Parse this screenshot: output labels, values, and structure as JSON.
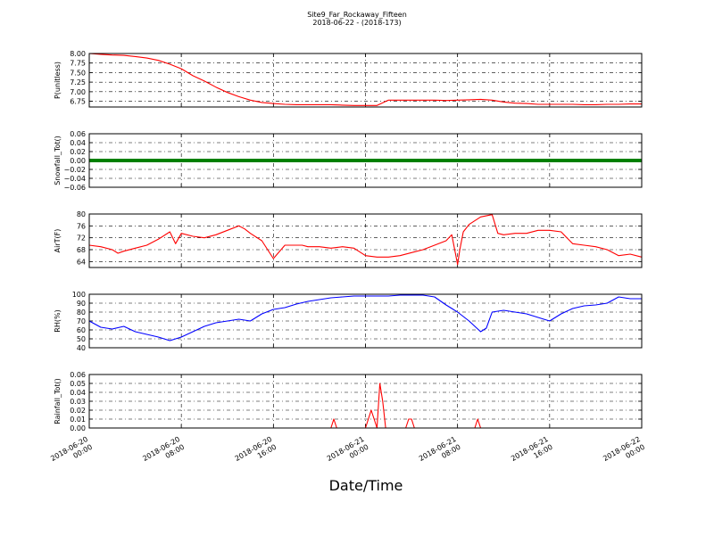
{
  "chart_data": {
    "title": "Site9_Far_Rockaway_Fifteen",
    "subtitle": "2018-06-22 - (2018-173)",
    "xlabel": "Date/Time",
    "x_ticks": [
      [
        "2018-06-20",
        "00:00"
      ],
      [
        "2018-06-20",
        "08:00"
      ],
      [
        "2018-06-20",
        "16:00"
      ],
      [
        "2018-06-21",
        "00:00"
      ],
      [
        "2018-06-21",
        "08:00"
      ],
      [
        "2018-06-21",
        "16:00"
      ],
      [
        "2018-06-22",
        "00:00"
      ]
    ],
    "x_range_hours": [
      0,
      48
    ],
    "grid": true,
    "panels": [
      {
        "type": "line",
        "ylabel": "P(unitless)",
        "color": "#ff0000",
        "ylim": [
          6.6,
          8.0
        ],
        "yticks": [
          "8.00",
          "7.75",
          "7.50",
          "7.25",
          "7.00",
          "6.75"
        ],
        "ytick_values": [
          8.0,
          7.75,
          7.5,
          7.25,
          7.0,
          6.75
        ],
        "x": [
          0,
          1,
          2,
          3,
          4,
          5,
          6,
          7,
          8,
          9,
          10,
          11,
          12,
          13,
          14,
          15,
          16,
          17,
          18,
          19,
          20,
          21,
          22,
          23,
          24,
          25,
          26,
          27,
          28,
          29,
          30,
          31,
          32,
          33,
          34,
          35,
          36,
          37,
          38,
          39,
          40,
          41,
          42,
          43,
          44,
          45,
          46,
          47,
          48
        ],
        "values": [
          8.0,
          7.98,
          7.96,
          7.95,
          7.92,
          7.88,
          7.82,
          7.72,
          7.6,
          7.42,
          7.28,
          7.12,
          6.98,
          6.87,
          6.78,
          6.72,
          6.69,
          6.67,
          6.66,
          6.66,
          6.66,
          6.66,
          6.65,
          6.64,
          6.64,
          6.64,
          6.78,
          6.78,
          6.78,
          6.78,
          6.78,
          6.77,
          6.78,
          6.79,
          6.8,
          6.78,
          6.73,
          6.7,
          6.69,
          6.67,
          6.67,
          6.67,
          6.67,
          6.66,
          6.66,
          6.67,
          6.67,
          6.68,
          6.68
        ]
      },
      {
        "type": "line",
        "ylabel": "Snowfall_Tot()",
        "color": "#008000",
        "ylim": [
          -0.06,
          0.06
        ],
        "yticks": [
          "0.06",
          "0.04",
          "0.02",
          "0.00",
          "−0.02",
          "−0.04",
          "−0.06"
        ],
        "ytick_values": [
          0.06,
          0.04,
          0.02,
          0.0,
          -0.02,
          -0.04,
          -0.06
        ],
        "x": [
          0,
          48
        ],
        "values": [
          0.0,
          0.0
        ]
      },
      {
        "type": "line",
        "ylabel": "AirT(F)",
        "color": "#ff0000",
        "ylim": [
          62,
          80
        ],
        "yticks": [
          "80",
          "76",
          "72",
          "68",
          "64"
        ],
        "ytick_values": [
          80,
          76,
          72,
          68,
          64
        ],
        "x": [
          0,
          1,
          2,
          2.5,
          3,
          4,
          5,
          6,
          7,
          7.5,
          8,
          9,
          10,
          11,
          12,
          13,
          13.5,
          14,
          15,
          16,
          17,
          18,
          18.5,
          19,
          20,
          21,
          22,
          23,
          24,
          25,
          26,
          27,
          28,
          29,
          30,
          31,
          31.5,
          32,
          32.2,
          32.5,
          33,
          34,
          35,
          35.5,
          36,
          37,
          38,
          39,
          40,
          41,
          42,
          43,
          44,
          45,
          46,
          47,
          48
        ],
        "values": [
          69.5,
          69,
          68,
          66.8,
          67.5,
          68.5,
          69.5,
          71.5,
          74,
          70,
          73.5,
          72.5,
          72,
          73,
          74.5,
          76,
          75,
          73.5,
          71,
          65,
          69.5,
          69.5,
          69.5,
          69,
          69,
          68.5,
          69,
          68.5,
          66,
          65.5,
          65.5,
          66,
          67,
          68,
          69.5,
          71,
          73,
          63,
          68,
          74,
          76.5,
          79,
          79.8,
          73.5,
          73,
          73.5,
          73.5,
          74.5,
          74.5,
          74,
          70,
          69.5,
          69,
          68,
          66,
          66.5,
          65.5
        ]
      },
      {
        "type": "line",
        "ylabel": "RH(%)",
        "color": "#0000ff",
        "ylim": [
          40,
          100
        ],
        "yticks": [
          "100",
          "90",
          "80",
          "70",
          "60",
          "50",
          "40"
        ],
        "ytick_values": [
          100,
          90,
          80,
          70,
          60,
          50,
          40
        ],
        "x": [
          0,
          1,
          2,
          3,
          4,
          5,
          6,
          7,
          8,
          9,
          10,
          11,
          12,
          13,
          14,
          15,
          16,
          17,
          18,
          19,
          20,
          21,
          22,
          23,
          24,
          25,
          26,
          27,
          28,
          29,
          30,
          31,
          32,
          33,
          34,
          34.5,
          35,
          36,
          37,
          38,
          39,
          40,
          41,
          42,
          43,
          44,
          45,
          46,
          47,
          48
        ],
        "values": [
          70,
          63,
          61,
          64,
          58,
          55,
          52,
          48,
          52,
          58,
          64,
          68,
          70,
          72,
          70,
          78,
          83,
          85,
          89,
          92,
          94,
          96,
          97,
          98,
          98,
          98,
          98,
          99,
          99,
          99,
          97,
          88,
          80,
          70,
          58,
          62,
          80,
          82,
          80,
          78,
          74,
          70,
          78,
          84,
          87,
          88,
          90,
          97,
          95,
          95
        ]
      },
      {
        "type": "line",
        "ylabel": "Rainfall_Tot()",
        "color": "#ff0000",
        "ylim": [
          0,
          0.06
        ],
        "yticks": [
          "0.06",
          "0.05",
          "0.04",
          "0.03",
          "0.02",
          "0.01",
          "0.00"
        ],
        "ytick_values": [
          0.06,
          0.05,
          0.04,
          0.03,
          0.02,
          0.01,
          0.0
        ],
        "x": [
          0,
          21,
          21.25,
          21.5,
          24,
          24.25,
          24.5,
          24.75,
          25,
          25.25,
          25.5,
          25.75,
          26,
          27.5,
          27.75,
          28,
          28.25,
          33.5,
          33.75,
          34,
          48
        ],
        "values": [
          0,
          0,
          0.01,
          0,
          0,
          0.01,
          0.02,
          0.01,
          0,
          0.05,
          0.03,
          0,
          0,
          0,
          0.01,
          0.01,
          0,
          0,
          0.01,
          0,
          0
        ]
      }
    ]
  }
}
